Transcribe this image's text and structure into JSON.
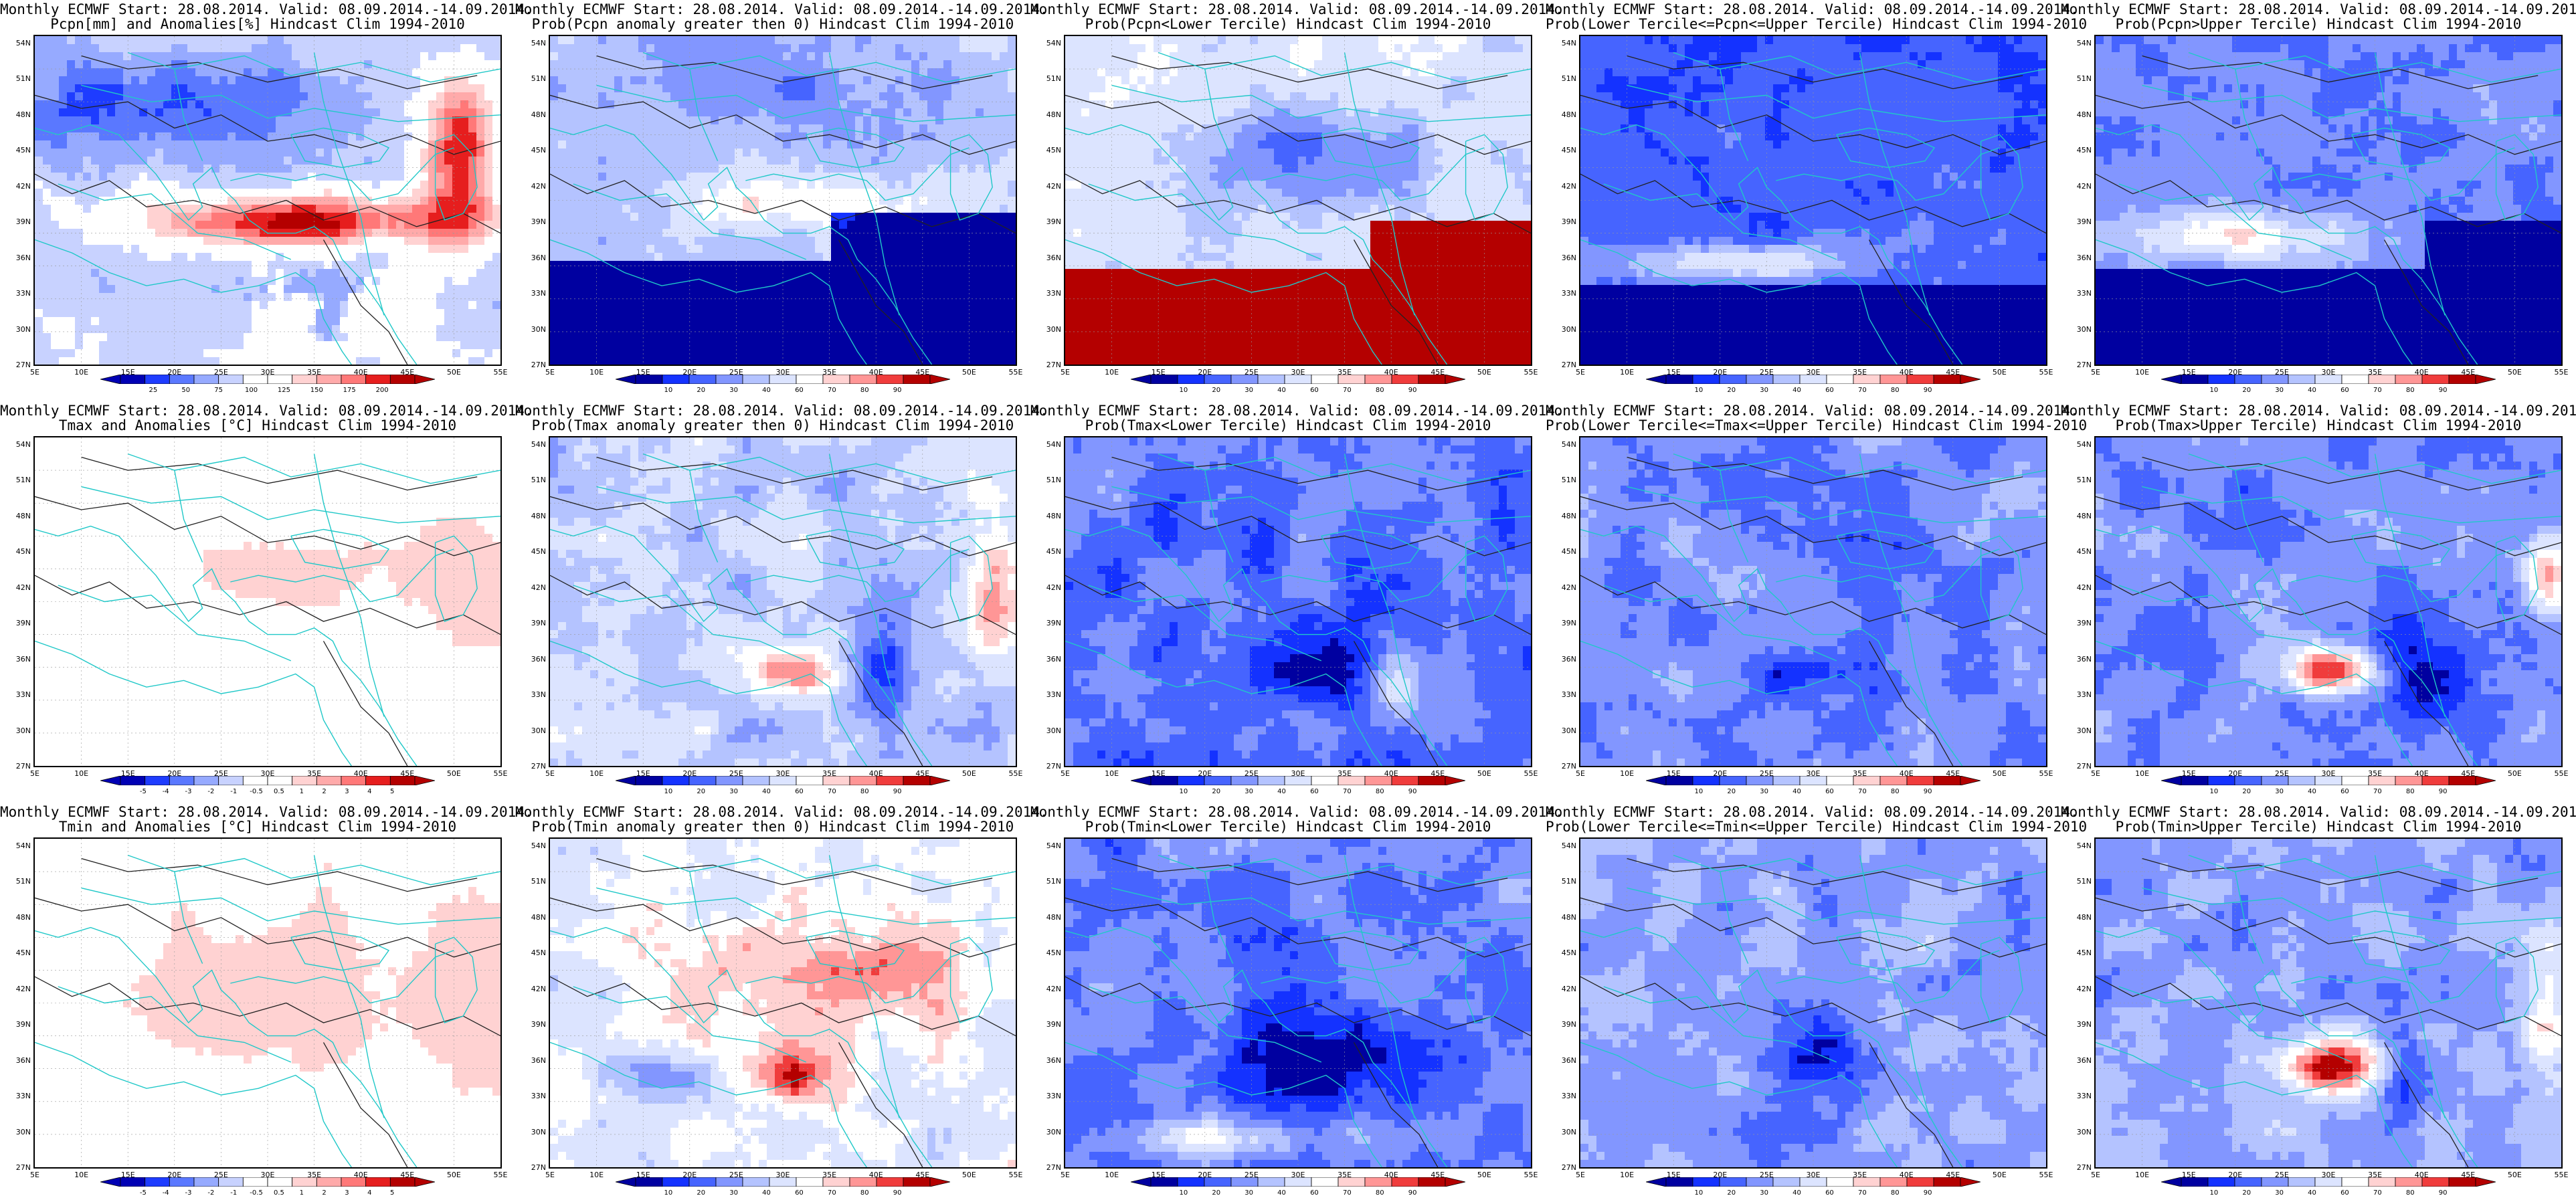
{
  "lat_labels": [
    "54N",
    "51N",
    "48N",
    "45N",
    "42N",
    "39N",
    "36N",
    "33N",
    "30N",
    "27N"
  ],
  "lon_labels": [
    "5E",
    "10E",
    "15E",
    "20E",
    "25E",
    "30E",
    "35E",
    "40E",
    "45E",
    "50E",
    "55E"
  ],
  "palettes": {
    "anom_pcpn": [
      "#0000b4",
      "#1e3cff",
      "#5a78ff",
      "#96aaff",
      "#c8d2ff",
      "#ffffff",
      "#ffffff",
      "#ffd2d2",
      "#ffaaaa",
      "#ff7878",
      "#e61e1e",
      "#b40000"
    ],
    "anom_temp": [
      "#0000b4",
      "#1e3cff",
      "#5a78ff",
      "#96aaff",
      "#c8d2ff",
      "#ffffff",
      "#ffffff",
      "#ffd2d2",
      "#ffaaaa",
      "#ff7878",
      "#e61e1e",
      "#b40000"
    ],
    "prob": [
      "#0000a0",
      "#1432ff",
      "#4664ff",
      "#8296ff",
      "#b4c3ff",
      "#dce4ff",
      "#ffffff",
      "#ffd2d2",
      "#ff9696",
      "#f03c3c",
      "#b40000"
    ]
  },
  "colorbar_labels": {
    "pcpn": [
      "25",
      "50",
      "75",
      "100",
      "125",
      "150",
      "175",
      "200"
    ],
    "temp": [
      "-5",
      "-4",
      "-3",
      "-2",
      "-1",
      "-0.5",
      "0.5",
      "1",
      "2",
      "3",
      "4",
      "5"
    ],
    "prob": [
      "10",
      "20",
      "30",
      "40",
      "60",
      "70",
      "80",
      "90"
    ]
  },
  "panels": [
    {
      "title": [
        "Monthly ECMWF Start: 28.08.2014. Valid: 08.09.2014.-14.09.2014.",
        "Pcpn[mm] and Anomalies[%] Hindcast Clim 1994-2010"
      ],
      "palette": "anom_pcpn",
      "cbar": "pcpn",
      "pattern": "pcpn_anom"
    },
    {
      "title": [
        "Monthly ECMWF Start: 28.08.2014. Valid: 08.09.2014.-14.09.2014.",
        "Prob(Pcpn anomaly greater then 0) Hindcast Clim 1994-2010"
      ],
      "palette": "prob",
      "cbar": "prob",
      "pattern": "pcpn_pos"
    },
    {
      "title": [
        "Monthly ECMWF Start: 28.08.2014. Valid: 08.09.2014.-14.09.2014.",
        "Prob(Pcpn<Lower Tercile) Hindcast Clim 1994-2010"
      ],
      "palette": "prob",
      "cbar": "prob",
      "pattern": "pcpn_low"
    },
    {
      "title": [
        "Monthly ECMWF Start: 28.08.2014. Valid: 08.09.2014.-14.09.2014.",
        "Prob(Lower Tercile<=Pcpn<=Upper Tercile) Hindcast Clim 1994-2010"
      ],
      "palette": "prob",
      "cbar": "prob",
      "pattern": "pcpn_mid"
    },
    {
      "title": [
        "Monthly ECMWF Start: 28.08.2014. Valid: 08.09.2014.-14.09.2014.",
        "Prob(Pcpn>Upper Tercile) Hindcast Clim 1994-2010"
      ],
      "palette": "prob",
      "cbar": "prob",
      "pattern": "pcpn_up"
    },
    {
      "title": [
        "Monthly ECMWF Start: 28.08.2014. Valid: 08.09.2014.-14.09.2014.",
        "Tmax and Anomalies [°C] Hindcast Clim 1994-2010"
      ],
      "palette": "anom_temp",
      "cbar": "temp",
      "pattern": "tmax_anom"
    },
    {
      "title": [
        "Monthly ECMWF Start: 28.08.2014. Valid: 08.09.2014.-14.09.2014.",
        "Prob(Tmax anomaly greater then 0) Hindcast Clim 1994-2010"
      ],
      "palette": "prob",
      "cbar": "prob",
      "pattern": "tmax_pos"
    },
    {
      "title": [
        "Monthly ECMWF Start: 28.08.2014. Valid: 08.09.2014.-14.09.2014.",
        "Prob(Tmax<Lower Tercile) Hindcast Clim 1994-2010"
      ],
      "palette": "prob",
      "cbar": "prob",
      "pattern": "tmax_low"
    },
    {
      "title": [
        "Monthly ECMWF Start: 28.08.2014. Valid: 08.09.2014.-14.09.2014.",
        "Prob(Lower Tercile<=Tmax<=Upper Tercile) Hindcast Clim 1994-2010"
      ],
      "palette": "prob",
      "cbar": "prob",
      "pattern": "tmax_mid"
    },
    {
      "title": [
        "Monthly ECMWF Start: 28.08.2014. Valid: 08.09.2014.-14.09.2014.",
        "Prob(Tmax>Upper Tercile) Hindcast Clim 1994-2010"
      ],
      "palette": "prob",
      "cbar": "prob",
      "pattern": "tmax_up"
    },
    {
      "title": [
        "Monthly ECMWF Start: 28.08.2014. Valid: 08.09.2014.-14.09.2014.",
        "Tmin and Anomalies [°C] Hindcast Clim 1994-2010"
      ],
      "palette": "anom_temp",
      "cbar": "temp",
      "pattern": "tmin_anom"
    },
    {
      "title": [
        "Monthly ECMWF Start: 28.08.2014. Valid: 08.09.2014.-14.09.2014.",
        "Prob(Tmin anomaly greater then 0) Hindcast Clim 1994-2010"
      ],
      "palette": "prob",
      "cbar": "prob",
      "pattern": "tmin_pos"
    },
    {
      "title": [
        "Monthly ECMWF Start: 28.08.2014. Valid: 08.09.2014.-14.09.2014.",
        "Prob(Tmin<Lower Tercile) Hindcast Clim 1994-2010"
      ],
      "palette": "prob",
      "cbar": "prob",
      "pattern": "tmin_low"
    },
    {
      "title": [
        "Monthly ECMWF Start: 28.08.2014. Valid: 08.09.2014.-14.09.2014.",
        "Prob(Lower Tercile<=Tmin<=Upper Tercile) Hindcast Clim 1994-2010"
      ],
      "palette": "prob",
      "cbar": "prob",
      "pattern": "tmin_mid"
    },
    {
      "title": [
        "Monthly ECMWF Start: 28.08.2014. Valid: 08.09.2014.-14.09.2014.",
        "Prob(Tmin>Upper Tercile) Hindcast Clim 1994-2010"
      ],
      "palette": "prob",
      "cbar": "prob",
      "pattern": "tmin_up"
    }
  ]
}
